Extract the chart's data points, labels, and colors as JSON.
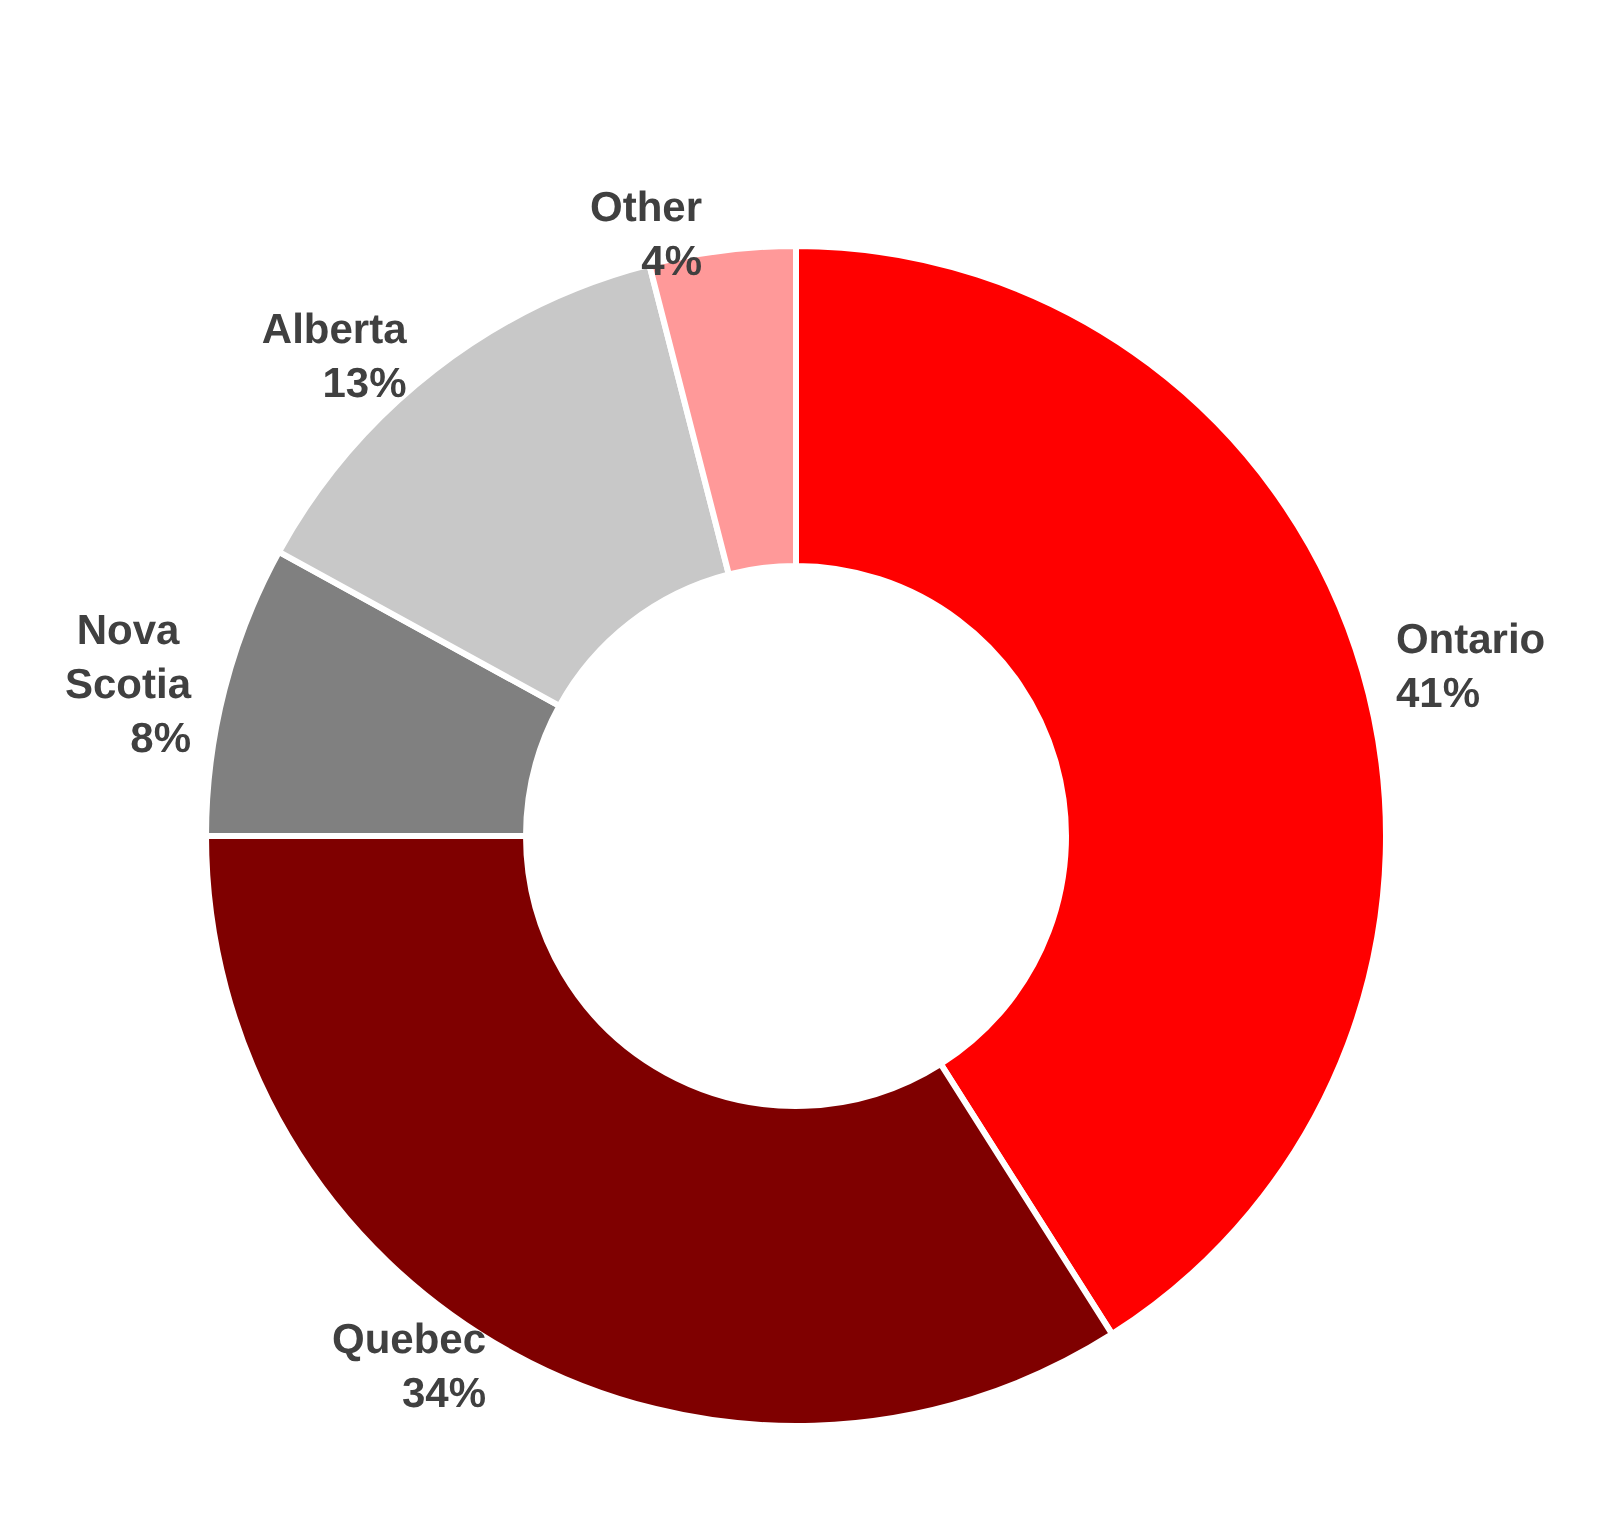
{
  "chart_data": {
    "type": "donut",
    "categories": [
      "Ontario",
      "Quebec",
      "Nova Scotia",
      "Alberta",
      "Other"
    ],
    "values": [
      41,
      34,
      8,
      13,
      4
    ],
    "colors": [
      "#ff0000",
      "#7f0000",
      "#808080",
      "#c8c8c8",
      "#ff9999"
    ],
    "value_labels": [
      "41%",
      "34%",
      "8%",
      "13%",
      "4%"
    ],
    "legend": false
  }
}
